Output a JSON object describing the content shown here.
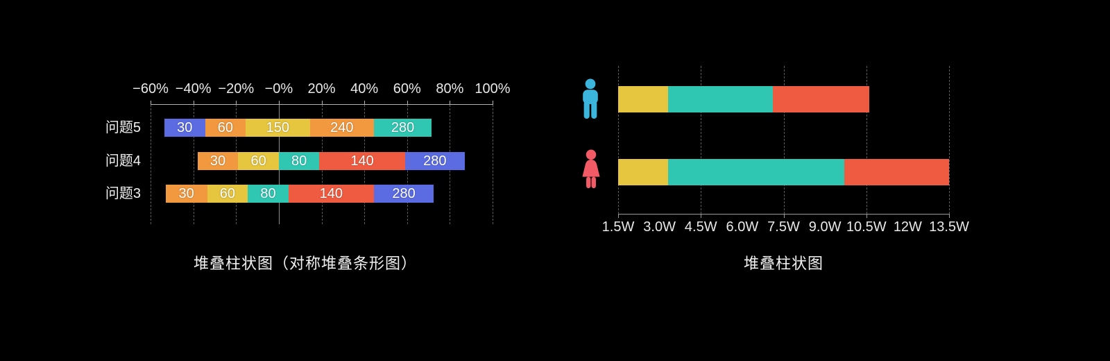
{
  "background": "#000000",
  "palette": {
    "blue": "#5B6CE3",
    "orange": "#F2993F",
    "yellow": "#E6C53F",
    "teal": "#2FC7B2",
    "red": "#EF5B40",
    "male_icon": "#3BB5DC",
    "female_icon": "#F25B66",
    "axis_text": "#E9E9E9",
    "grid_line": "#5C5C5C",
    "zero_line": "#8F8F8F",
    "axis_line": "#B3B3B3",
    "value_text": "#FFFFFF",
    "title_text": "#F2F2F2"
  },
  "left_chart": {
    "title": "堆叠柱状图（对称堆叠条形图）",
    "zero_tick_index": 3
  },
  "right_chart": {
    "title": "堆叠柱状图",
    "gridline_every_n_ticks": 2
  },
  "chart_data": [
    {
      "type": "bar",
      "variant": "diverging-stacked-horizontal",
      "title": "堆叠柱状图（对称堆叠条形图）",
      "categories": [
        "问题5",
        "问题4",
        "问题3"
      ],
      "x_tick_labels": [
        "−60%",
        "−40%",
        "−20%",
        "−0%",
        "20%",
        "40%",
        "60%",
        "80%",
        "100%"
      ],
      "xlim": [
        -60,
        100
      ],
      "grid": "dashed-vertical-every-20pct-with-solid-zero-line",
      "legend": "none",
      "rows": [
        {
          "category": "问题5",
          "start_pct": -53.5,
          "segments": [
            {
              "label": "30",
              "value": 30,
              "color_key": "blue",
              "width_pct": 19
            },
            {
              "label": "60",
              "value": 60,
              "color_key": "orange",
              "width_pct": 19
            },
            {
              "label": "150",
              "value": 150,
              "color_key": "yellow",
              "width_pct": 30
            },
            {
              "label": "240",
              "value": 240,
              "color_key": "orange",
              "width_pct": 30
            },
            {
              "label": "280",
              "value": 280,
              "color_key": "teal",
              "width_pct": 27
            }
          ]
        },
        {
          "category": "问题4",
          "start_pct": -38,
          "segments": [
            {
              "label": "30",
              "value": 30,
              "color_key": "orange",
              "width_pct": 19
            },
            {
              "label": "60",
              "value": 60,
              "color_key": "yellow",
              "width_pct": 19
            },
            {
              "label": "80",
              "value": 80,
              "color_key": "teal",
              "width_pct": 19
            },
            {
              "label": "140",
              "value": 140,
              "color_key": "red",
              "width_pct": 40
            },
            {
              "label": "280",
              "value": 280,
              "color_key": "blue",
              "width_pct": 28
            }
          ]
        },
        {
          "category": "问题3",
          "start_pct": -53,
          "segments": [
            {
              "label": "30",
              "value": 30,
              "color_key": "orange",
              "width_pct": 19.5
            },
            {
              "label": "60",
              "value": 60,
              "color_key": "yellow",
              "width_pct": 19
            },
            {
              "label": "80",
              "value": 80,
              "color_key": "teal",
              "width_pct": 19
            },
            {
              "label": "140",
              "value": 140,
              "color_key": "red",
              "width_pct": 40
            },
            {
              "label": "280",
              "value": 280,
              "color_key": "blue",
              "width_pct": 28
            }
          ]
        }
      ]
    },
    {
      "type": "bar",
      "variant": "stacked-horizontal",
      "title": "堆叠柱状图",
      "categories": [
        "male",
        "female"
      ],
      "x_tick_labels": [
        "1.5W",
        "3.0W",
        "4.5W",
        "6.0W",
        "7.5W",
        "9.0W",
        "10.5W",
        "12W",
        "13.5W"
      ],
      "units": "W",
      "x_span_w": 12,
      "grid": "dashed-vertical-every-3W",
      "legend": "none",
      "series": [
        {
          "name": "yellow",
          "color_key": "yellow",
          "values": [
            1.8,
            1.8
          ]
        },
        {
          "name": "teal",
          "color_key": "teal",
          "values": [
            3.8,
            6.4
          ]
        },
        {
          "name": "red",
          "color_key": "red",
          "values": [
            3.5,
            3.8
          ]
        }
      ]
    }
  ]
}
